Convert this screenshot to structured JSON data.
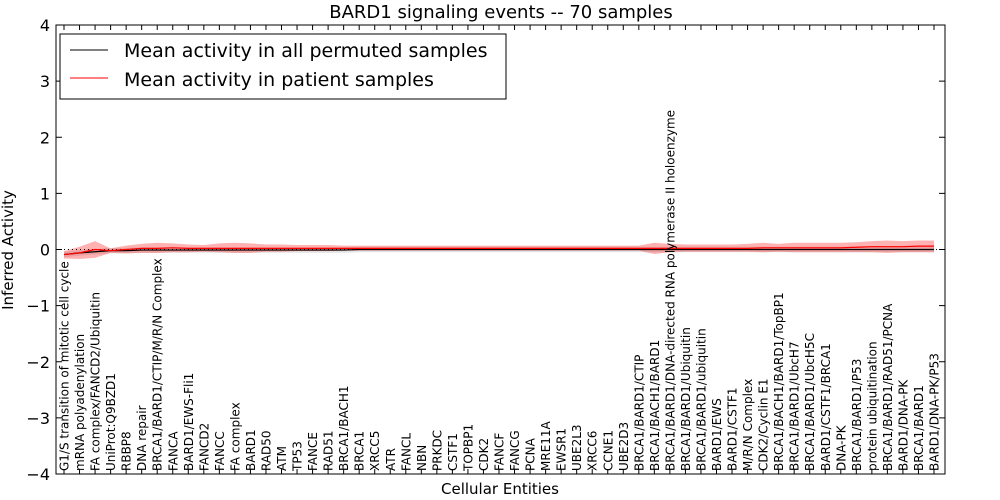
{
  "chart_data": {
    "type": "line",
    "title": "BARD1 signaling events -- 70 samples",
    "xlabel": "Cellular Entities",
    "ylabel": "Inferred Activity",
    "ylim": [
      -4,
      4
    ],
    "yticks": [
      "−4",
      "−3",
      "−2",
      "−1",
      "0",
      "1",
      "2",
      "3",
      "4"
    ],
    "grid": false,
    "legend_position": "top-left",
    "legend": [
      {
        "label": "Mean activity in all permuted samples",
        "color": "#000000"
      },
      {
        "label": "Mean activity in patient samples",
        "color": "#ff0000"
      }
    ],
    "categories": [
      "G1/S transition of mitotic cell cycle",
      "mRNA polyadenylation",
      "FA complex/FANCD2/Ubiquitin",
      "UniProt:Q9BZD1",
      "RBBP8",
      "DNA repair",
      "BRCA1/BARD1/CTIP/M/R/N Complex",
      "FANCA",
      "BARD1/EWS-Fli1",
      "FANCD2",
      "FANCC",
      "FA complex",
      "BARD1",
      "RAD50",
      "ATM",
      "TP53",
      "FANCE",
      "RAD51",
      "BRCA1/BACH1",
      "BRCA1",
      "XRCC5",
      "ATR",
      "FANCL",
      "NBN",
      "PRKDC",
      "CSTF1",
      "TOPBP1",
      "CDK2",
      "FANCF",
      "FANCG",
      "PCNA",
      "MRE11A",
      "EWSR1",
      "UBE2L3",
      "XRCC6",
      "CCNE1",
      "UBE2D3",
      "BRCA1/BARD1/CTIP",
      "BRCA1/BACH1/BARD1",
      "BRCA1/BARD1/DNA-directed RNA polymerase II holoenzyme",
      "BRCA1/BARD1/Ubiquitin",
      "BRCA1/BARD1/ubiquitin",
      "BARD1/EWS",
      "BARD1/CSTF1",
      "M/R/N Complex",
      "CDK2/Cyclin E1",
      "BRCA1/BACH1/BARD1/TopBP1",
      "BRCA1/BARD1/UbcH7",
      "BRCA1/BARD1/UbcH5C",
      "BARD1/CSTF1/BRCA1",
      "DNA-PK",
      "BRCA1/BARD1/P53",
      "protein ubiquitination",
      "BRCA1/BARD1/RAD51/PCNA",
      "BARD1/DNA-PK",
      "BRCA1/BARD1",
      "BARD1/DNA-PK/P53"
    ],
    "series": [
      {
        "name": "Mean activity in all permuted samples",
        "color": "#000000",
        "values": [
          -0.09,
          -0.06,
          -0.04,
          -0.02,
          -0.02,
          -0.01,
          -0.01,
          -0.01,
          -0.01,
          -0.01,
          -0.01,
          -0.01,
          -0.01,
          -0.01,
          -0.01,
          -0.01,
          -0.01,
          -0.01,
          -0.01,
          0.0,
          0.0,
          0.0,
          0.0,
          0.0,
          0.0,
          0.0,
          0.0,
          0.0,
          0.0,
          0.0,
          0.0,
          0.0,
          0.0,
          0.0,
          0.0,
          0.0,
          0.0,
          0.0,
          0.0,
          0.0,
          0.0,
          0.0,
          0.0,
          0.0,
          0.0,
          0.0,
          0.0,
          0.0,
          0.0,
          0.0,
          0.0,
          0.0,
          0.0,
          0.0,
          0.0,
          0.0,
          0.0
        ]
      },
      {
        "name": "Mean activity in patient samples",
        "color": "#ff0000",
        "values": [
          -0.09,
          -0.06,
          0.0,
          -0.02,
          0.0,
          0.02,
          0.02,
          0.03,
          0.02,
          0.02,
          0.02,
          0.02,
          0.02,
          0.02,
          0.02,
          0.02,
          0.02,
          0.02,
          0.02,
          0.02,
          0.02,
          0.02,
          0.02,
          0.02,
          0.02,
          0.02,
          0.02,
          0.02,
          0.02,
          0.02,
          0.02,
          0.02,
          0.02,
          0.02,
          0.02,
          0.02,
          0.02,
          0.02,
          0.02,
          0.02,
          0.02,
          0.02,
          0.02,
          0.02,
          0.02,
          0.03,
          0.03,
          0.03,
          0.03,
          0.03,
          0.03,
          0.04,
          0.05,
          0.05,
          0.05,
          0.06,
          0.06
        ],
        "band_upper": [
          -0.03,
          0.05,
          0.15,
          0.02,
          0.07,
          0.1,
          0.12,
          0.11,
          0.09,
          0.08,
          0.11,
          0.12,
          0.11,
          0.09,
          0.09,
          0.08,
          0.08,
          0.08,
          0.07,
          0.07,
          0.07,
          0.07,
          0.07,
          0.07,
          0.07,
          0.07,
          0.07,
          0.07,
          0.07,
          0.07,
          0.07,
          0.07,
          0.07,
          0.07,
          0.07,
          0.07,
          0.07,
          0.07,
          0.12,
          0.1,
          0.09,
          0.09,
          0.09,
          0.09,
          0.1,
          0.12,
          0.1,
          0.12,
          0.12,
          0.12,
          0.12,
          0.13,
          0.15,
          0.16,
          0.15,
          0.16,
          0.16
        ],
        "band_lower": [
          -0.16,
          -0.17,
          -0.15,
          -0.06,
          -0.07,
          -0.06,
          -0.06,
          -0.05,
          -0.05,
          -0.04,
          -0.05,
          -0.06,
          -0.06,
          -0.04,
          -0.04,
          -0.03,
          -0.03,
          -0.03,
          -0.02,
          -0.02,
          -0.02,
          -0.02,
          -0.02,
          -0.02,
          -0.02,
          -0.02,
          -0.02,
          -0.02,
          -0.02,
          -0.02,
          -0.02,
          -0.02,
          -0.02,
          -0.02,
          -0.02,
          -0.02,
          -0.02,
          -0.02,
          -0.08,
          -0.05,
          -0.04,
          -0.04,
          -0.04,
          -0.04,
          -0.04,
          -0.05,
          -0.04,
          -0.05,
          -0.05,
          -0.05,
          -0.05,
          -0.05,
          -0.05,
          -0.06,
          -0.05,
          -0.05,
          -0.05
        ]
      }
    ]
  }
}
